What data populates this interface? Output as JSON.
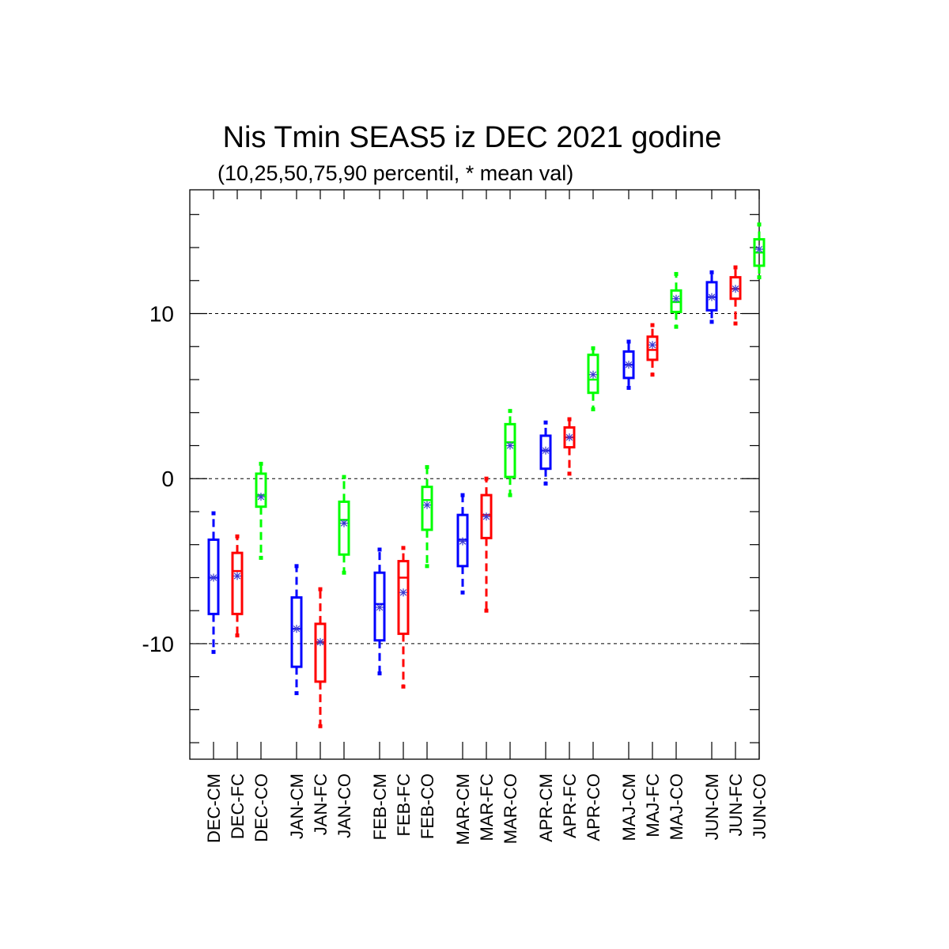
{
  "chart_data": {
    "type": "box",
    "title": "Nis Tmin SEAS5 iz DEC 2021 godine",
    "subtitle": "(10,25,50,75,90 percentil, * mean val)",
    "xlabel": "",
    "ylabel": "",
    "ylim": [
      -17,
      17.5
    ],
    "yticks": [
      -10,
      0,
      10
    ],
    "ytick_labels": [
      "-10",
      "0",
      "10"
    ],
    "reference_lines": [
      -10,
      0,
      10
    ],
    "series_colors": {
      "CM": "#0000ff",
      "FC": "#ff0000",
      "CO": "#00ff00"
    },
    "mean_marker_color": "#3a3ad0",
    "categories": [
      "DEC-CM",
      "DEC-FC",
      "DEC-CO",
      "JAN-CM",
      "JAN-FC",
      "JAN-CO",
      "FEB-CM",
      "FEB-FC",
      "FEB-CO",
      "MAR-CM",
      "MAR-FC",
      "MAR-CO",
      "APR-CM",
      "APR-FC",
      "APR-CO",
      "MAJ-CM",
      "MAJ-FC",
      "MAJ-CO",
      "JUN-CM",
      "JUN-FC",
      "JUN-CO"
    ],
    "boxes": [
      {
        "label": "DEC-CM",
        "series": "CM",
        "p10": -10.5,
        "p25": -8.2,
        "p50": -6.0,
        "p75": -3.7,
        "p90": -2.1,
        "mean": -6.0
      },
      {
        "label": "DEC-FC",
        "series": "FC",
        "p10": -9.5,
        "p25": -8.2,
        "p50": -5.6,
        "p75": -4.5,
        "p90": -3.5,
        "mean": -5.9
      },
      {
        "label": "DEC-CO",
        "series": "CO",
        "p10": -4.8,
        "p25": -1.7,
        "p50": -1.0,
        "p75": 0.3,
        "p90": 0.9,
        "mean": -1.1
      },
      {
        "label": "JAN-CM",
        "series": "CM",
        "p10": -13.0,
        "p25": -11.4,
        "p50": -9.1,
        "p75": -7.2,
        "p90": -5.3,
        "mean": -9.1
      },
      {
        "label": "JAN-FC",
        "series": "FC",
        "p10": -15.0,
        "p25": -12.3,
        "p50": -9.9,
        "p75": -8.8,
        "p90": -6.7,
        "mean": -9.9
      },
      {
        "label": "JAN-CO",
        "series": "CO",
        "p10": -5.7,
        "p25": -4.6,
        "p50": -2.5,
        "p75": -1.4,
        "p90": 0.1,
        "mean": -2.7
      },
      {
        "label": "FEB-CM",
        "series": "CM",
        "p10": -11.8,
        "p25": -9.8,
        "p50": -7.6,
        "p75": -5.7,
        "p90": -4.3,
        "mean": -7.8
      },
      {
        "label": "FEB-FC",
        "series": "FC",
        "p10": -12.6,
        "p25": -9.4,
        "p50": -6.0,
        "p75": -5.0,
        "p90": -4.2,
        "mean": -6.9
      },
      {
        "label": "FEB-CO",
        "series": "CO",
        "p10": -5.3,
        "p25": -3.1,
        "p50": -1.3,
        "p75": -0.5,
        "p90": 0.7,
        "mean": -1.6
      },
      {
        "label": "MAR-CM",
        "series": "CM",
        "p10": -6.9,
        "p25": -5.3,
        "p50": -3.7,
        "p75": -2.2,
        "p90": -1.0,
        "mean": -3.8
      },
      {
        "label": "MAR-FC",
        "series": "FC",
        "p10": -8.0,
        "p25": -3.6,
        "p50": -2.2,
        "p75": -1.0,
        "p90": 0.0,
        "mean": -2.3
      },
      {
        "label": "MAR-CO",
        "series": "CO",
        "p10": -1.0,
        "p25": 0.1,
        "p50": 2.2,
        "p75": 3.3,
        "p90": 4.1,
        "mean": 2.0
      },
      {
        "label": "APR-CM",
        "series": "CM",
        "p10": -0.3,
        "p25": 0.6,
        "p50": 1.7,
        "p75": 2.6,
        "p90": 3.4,
        "mean": 1.7
      },
      {
        "label": "APR-FC",
        "series": "FC",
        "p10": 0.3,
        "p25": 1.9,
        "p50": 2.5,
        "p75": 3.1,
        "p90": 3.6,
        "mean": 2.5
      },
      {
        "label": "APR-CO",
        "series": "CO",
        "p10": 4.2,
        "p25": 5.2,
        "p50": 6.0,
        "p75": 7.5,
        "p90": 7.9,
        "mean": 6.3
      },
      {
        "label": "MAJ-CM",
        "series": "CM",
        "p10": 5.5,
        "p25": 6.1,
        "p50": 6.9,
        "p75": 7.7,
        "p90": 8.3,
        "mean": 6.9
      },
      {
        "label": "MAJ-FC",
        "series": "FC",
        "p10": 6.3,
        "p25": 7.2,
        "p50": 7.8,
        "p75": 8.6,
        "p90": 9.3,
        "mean": 8.1
      },
      {
        "label": "MAJ-CO",
        "series": "CO",
        "p10": 9.2,
        "p25": 10.1,
        "p50": 10.7,
        "p75": 11.4,
        "p90": 12.4,
        "mean": 10.9
      },
      {
        "label": "JUN-CM",
        "series": "CM",
        "p10": 9.5,
        "p25": 10.2,
        "p50": 11.0,
        "p75": 11.9,
        "p90": 12.5,
        "mean": 11.0
      },
      {
        "label": "JUN-FC",
        "series": "FC",
        "p10": 9.4,
        "p25": 10.9,
        "p50": 11.5,
        "p75": 12.2,
        "p90": 12.8,
        "mean": 11.5
      },
      {
        "label": "JUN-CO",
        "series": "CO",
        "p10": 12.2,
        "p25": 12.9,
        "p50": 13.7,
        "p75": 14.5,
        "p90": 15.4,
        "mean": 13.9
      }
    ],
    "grid": false,
    "legend": "none"
  }
}
